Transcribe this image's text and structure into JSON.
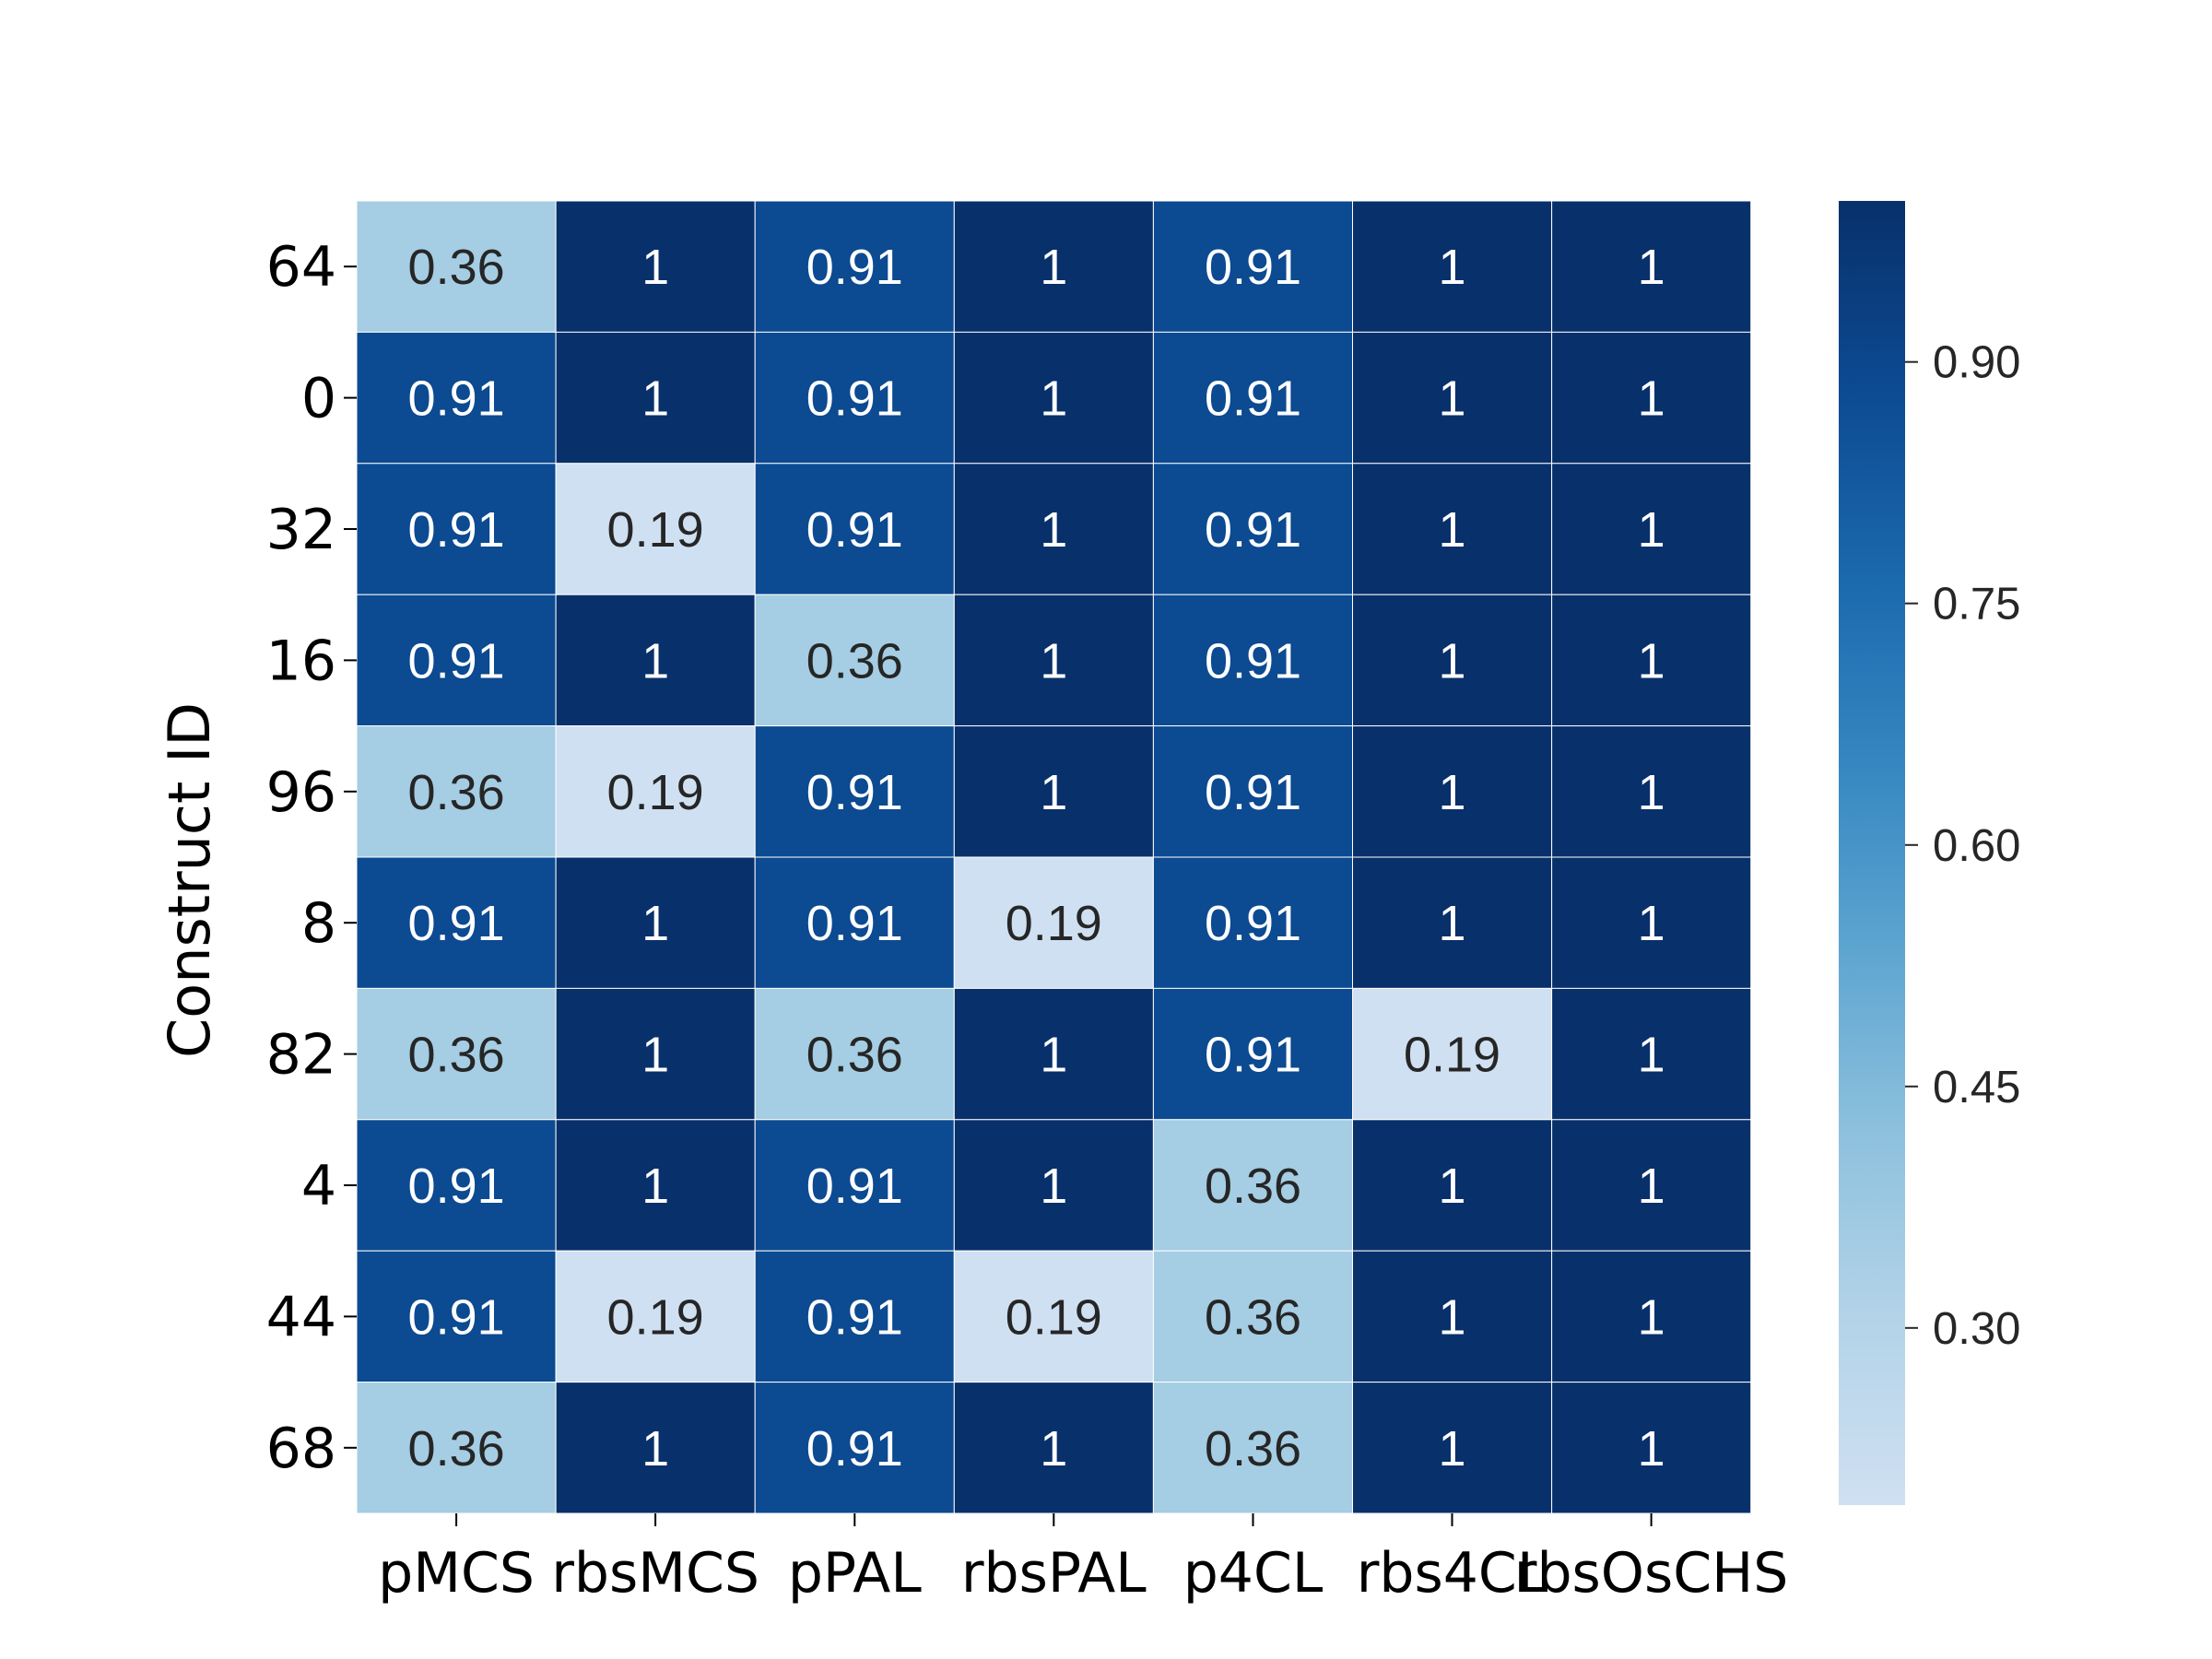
{
  "chart_data": {
    "type": "heatmap",
    "colormap": "Blues",
    "ylabel": "Construct ID",
    "xlabel": "",
    "columns": [
      "pMCS",
      "rbsMCS",
      "pPAL",
      "rbsPAL",
      "p4CL",
      "rbs4CL",
      "rbsOsCHS"
    ],
    "rows": [
      "64",
      "0",
      "32",
      "16",
      "96",
      "8",
      "82",
      "4",
      "44",
      "68"
    ],
    "values": [
      [
        0.36,
        1,
        0.91,
        1,
        0.91,
        1,
        1
      ],
      [
        0.91,
        1,
        0.91,
        1,
        0.91,
        1,
        1
      ],
      [
        0.91,
        0.19,
        0.91,
        1,
        0.91,
        1,
        1
      ],
      [
        0.91,
        1,
        0.36,
        1,
        0.91,
        1,
        1
      ],
      [
        0.36,
        0.19,
        0.91,
        1,
        0.91,
        1,
        1
      ],
      [
        0.91,
        1,
        0.91,
        0.19,
        0.91,
        1,
        1
      ],
      [
        0.36,
        1,
        0.36,
        1,
        0.91,
        0.19,
        1
      ],
      [
        0.91,
        1,
        0.91,
        1,
        0.36,
        1,
        1
      ],
      [
        0.91,
        0.19,
        0.91,
        0.19,
        0.36,
        1,
        1
      ],
      [
        0.36,
        1,
        0.91,
        1,
        0.36,
        1,
        1
      ]
    ],
    "annotations": [
      [
        "0.36",
        "1",
        "0.91",
        "1",
        "0.91",
        "1",
        "1"
      ],
      [
        "0.91",
        "1",
        "0.91",
        "1",
        "0.91",
        "1",
        "1"
      ],
      [
        "0.91",
        "0.19",
        "0.91",
        "1",
        "0.91",
        "1",
        "1"
      ],
      [
        "0.91",
        "1",
        "0.36",
        "1",
        "0.91",
        "1",
        "1"
      ],
      [
        "0.36",
        "0.19",
        "0.91",
        "1",
        "0.91",
        "1",
        "1"
      ],
      [
        "0.91",
        "1",
        "0.91",
        "0.19",
        "0.91",
        "1",
        "1"
      ],
      [
        "0.36",
        "1",
        "0.36",
        "1",
        "0.91",
        "0.19",
        "1"
      ],
      [
        "0.91",
        "1",
        "0.91",
        "1",
        "0.36",
        "1",
        "1"
      ],
      [
        "0.91",
        "0.19",
        "0.91",
        "0.19",
        "0.36",
        "1",
        "1"
      ],
      [
        "0.36",
        "1",
        "0.91",
        "1",
        "0.36",
        "1",
        "1"
      ]
    ],
    "colorbar": {
      "range": [
        0.19,
        1.0
      ],
      "ticks": [
        0.3,
        0.45,
        0.6,
        0.75,
        0.9
      ],
      "tick_labels": [
        "0.30",
        "0.45",
        "0.60",
        "0.75",
        "0.90"
      ]
    },
    "cell_colors": {
      "0.19": "#cfe0f2",
      "0.36": "#a5cde3",
      "0.91": "#0c4a91",
      "1": "#08306b"
    },
    "text_colors": {
      "dark_cell": "#ffffff",
      "light_cell": "#262626"
    },
    "colorbar_gradient": [
      "#cfe0f2",
      "#b3d3e8",
      "#8dc1dd",
      "#5ca4d0",
      "#3586c0",
      "#1b68ad",
      "#0c4a91",
      "#08306b"
    ],
    "grid_lines": true
  }
}
